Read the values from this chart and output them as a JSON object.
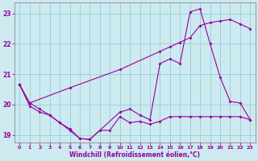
{
  "background_color": "#cceaf0",
  "grid_color": "#99cdd6",
  "line_color": "#990099",
  "xlabel": "Windchill (Refroidissement éolien,°C)",
  "xlim": [
    -0.5,
    23.5
  ],
  "ylim": [
    18.75,
    23.35
  ],
  "yticks": [
    19,
    20,
    21,
    22,
    23
  ],
  "xticks": [
    0,
    1,
    2,
    3,
    4,
    5,
    6,
    7,
    8,
    9,
    10,
    11,
    12,
    13,
    14,
    15,
    16,
    17,
    18,
    19,
    20,
    21,
    22,
    23
  ],
  "line1_x": [
    0,
    1,
    2,
    3,
    4,
    5,
    6,
    7,
    8,
    9,
    10,
    11,
    12,
    13,
    14,
    15,
    16,
    17,
    18,
    19,
    20,
    21,
    22,
    23
  ],
  "line1_y": [
    20.65,
    19.95,
    19.75,
    19.65,
    19.4,
    19.2,
    18.88,
    18.85,
    19.15,
    19.15,
    19.6,
    19.4,
    19.45,
    19.35,
    19.45,
    19.6,
    19.6,
    19.6,
    19.6,
    19.6,
    19.6,
    19.6,
    19.6,
    19.5
  ],
  "line2_x": [
    0,
    1,
    5,
    10,
    14,
    15,
    16,
    17,
    18,
    19,
    20,
    21,
    22,
    23
  ],
  "line2_y": [
    20.65,
    20.05,
    20.55,
    21.15,
    21.75,
    21.9,
    22.05,
    22.2,
    22.6,
    22.7,
    22.75,
    22.8,
    22.65,
    22.5
  ],
  "line3_x": [
    0,
    1,
    2,
    3,
    4,
    5,
    6,
    7,
    10,
    11,
    12,
    13,
    14,
    15,
    16,
    17,
    18,
    19,
    20,
    21,
    22,
    23
  ],
  "line3_y": [
    20.65,
    20.05,
    19.85,
    19.65,
    19.4,
    19.15,
    18.88,
    18.85,
    19.75,
    19.85,
    19.65,
    19.5,
    21.35,
    21.5,
    21.35,
    23.05,
    23.15,
    22.0,
    20.9,
    20.1,
    20.05,
    19.5
  ]
}
